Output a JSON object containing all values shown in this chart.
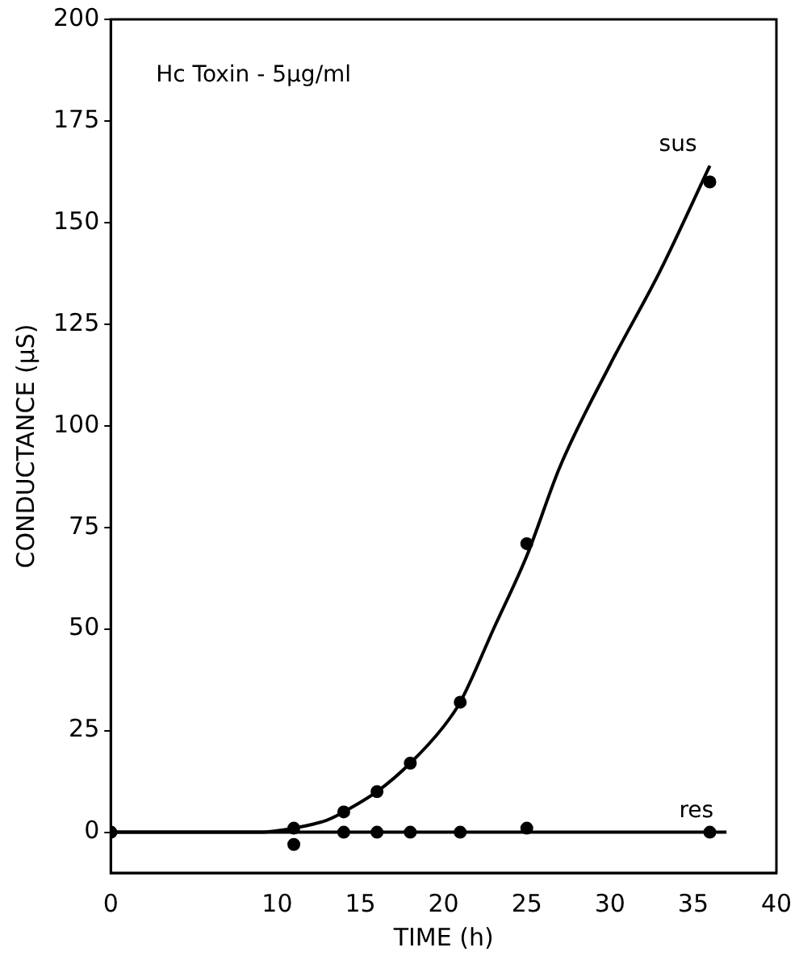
{
  "chart_data": {
    "type": "scatter",
    "xlabel": "TIME (h)",
    "ylabel": "CONDUCTANCE (µS)",
    "annotations": [
      "Hc Toxin - 5µg/ml"
    ],
    "xlim": [
      0,
      40
    ],
    "xticks": [
      0,
      10,
      15,
      20,
      25,
      30,
      35,
      40
    ],
    "ylim": [
      -10,
      200
    ],
    "yticks": [
      0,
      25,
      50,
      75,
      100,
      125,
      150,
      175,
      200
    ],
    "grid": false,
    "legend": false,
    "marker": "circle",
    "series": [
      {
        "color": "#000000",
        "x": [
          0,
          11,
          14,
          16,
          18,
          21,
          25,
          36
        ],
        "values": [
          0,
          1,
          5,
          10,
          17,
          32,
          71,
          160
        ]
      },
      {
        "color": "#000000",
        "x": [
          0,
          11,
          14,
          16,
          18,
          21,
          25,
          36
        ],
        "values": [
          0,
          -3,
          0,
          0,
          0,
          0,
          1,
          0
        ]
      },
      {
        "type": "line",
        "name": "sus",
        "color": "#000000",
        "marker": "none",
        "x": [
          0,
          9,
          11,
          13,
          14,
          16,
          18,
          20,
          21,
          23,
          25,
          27,
          30,
          33,
          36
        ],
        "values": [
          0,
          0,
          1,
          3,
          5,
          10,
          17,
          26,
          32,
          50,
          68,
          90,
          115,
          138,
          164
        ]
      },
      {
        "type": "line",
        "name": "res",
        "color": "#000000",
        "marker": "none",
        "x": [
          0,
          37
        ],
        "values": [
          0,
          0
        ]
      }
    ]
  }
}
